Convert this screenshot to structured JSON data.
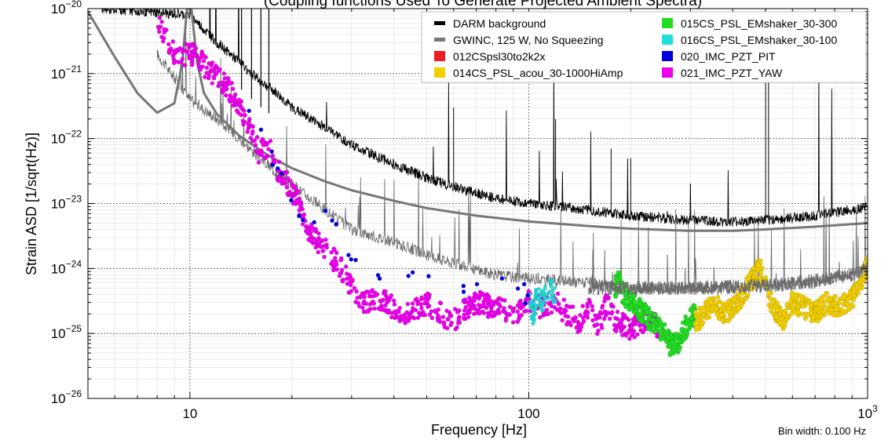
{
  "chart_data": {
    "type": "line",
    "title": "(Coupling functions Used To Generate Projected Ambient Spectra)",
    "xlabel": "Frequency [Hz]",
    "ylabel": "Strain ASD [1/sqrt(Hz)]",
    "xscale": "log",
    "yscale": "log",
    "xlim": [
      5,
      1000
    ],
    "ylim": [
      1e-26,
      1e-20
    ],
    "grid": true,
    "legend_position": "top-right",
    "note": "Bin width: 0.100 Hz",
    "x_ticks": [
      {
        "value": 10,
        "label": "10"
      },
      {
        "value": 100,
        "label": "100"
      },
      {
        "value": 1000,
        "label": "10",
        "exp": "3"
      }
    ],
    "y_ticks": [
      {
        "value": 1e-20,
        "label": "10",
        "exp": "−20"
      },
      {
        "value": 1e-21,
        "label": "10",
        "exp": "−21"
      },
      {
        "value": 1e-22,
        "label": "10",
        "exp": "−22"
      },
      {
        "value": 1e-23,
        "label": "10",
        "exp": "−23"
      },
      {
        "value": 1e-24,
        "label": "10",
        "exp": "−24"
      },
      {
        "value": 1e-25,
        "label": "10",
        "exp": "−25"
      },
      {
        "value": 1e-26,
        "label": "10",
        "exp": "−26"
      }
    ],
    "series": [
      {
        "name": "DARM background",
        "kind": "line",
        "color": "#000000",
        "x": [
          5.5,
          10,
          12,
          14,
          16,
          18,
          20,
          25,
          30,
          40,
          50,
          60,
          80,
          100,
          150,
          200,
          300,
          400,
          500,
          700,
          900,
          1000
        ],
        "y": [
          1e-20,
          8e-21,
          3e-21,
          1.5e-21,
          8e-22,
          5e-22,
          3e-22,
          1.5e-22,
          8e-23,
          4e-23,
          2.5e-23,
          1.8e-23,
          1.2e-23,
          1e-23,
          8e-24,
          6.5e-24,
          5.5e-24,
          5.2e-24,
          5.5e-24,
          6.5e-24,
          8e-24,
          9e-24
        ]
      },
      {
        "name": "GWINC, 125 W, No Squeezing",
        "kind": "line",
        "color": "#777777",
        "x": [
          5,
          6,
          7,
          8,
          9,
          9.5,
          9.8,
          10.1,
          10.5,
          11,
          12,
          14,
          17,
          20,
          25,
          30,
          40,
          50,
          70,
          100,
          150,
          200,
          300,
          400,
          500,
          700,
          1000
        ],
        "y": [
          9e-21,
          1.8e-21,
          5e-22,
          2.5e-22,
          3.5e-22,
          1.5e-21,
          1e-20,
          1e-20,
          1.5e-21,
          5e-22,
          2.4e-22,
          1.1e-22,
          5.5e-23,
          3.5e-23,
          2.2e-23,
          1.6e-23,
          1.1e-23,
          8.5e-24,
          6.5e-24,
          5.3e-24,
          4.5e-24,
          4.1e-24,
          3.8e-24,
          3.8e-24,
          4e-24,
          4.4e-24,
          5e-24
        ]
      },
      {
        "name": "012CSpsl30to2k2x",
        "kind": "points",
        "color": "#ee1c25",
        "x": [],
        "y": []
      },
      {
        "name": "014CS_PSL_acou_30-1000HiAmp",
        "kind": "points",
        "color": "#f2d000",
        "x": [
          310,
          330,
          350,
          380,
          400,
          430,
          450,
          480,
          520,
          560,
          600,
          650,
          700,
          760,
          820,
          880,
          940,
          1000
        ],
        "y": [
          1.5e-25,
          2e-25,
          3e-25,
          2e-25,
          2.5e-25,
          4e-25,
          6e-25,
          1e-24,
          3e-25,
          1.5e-25,
          3e-25,
          2.5e-25,
          2e-25,
          3e-25,
          2.5e-25,
          3e-25,
          5e-25,
          1.2e-24
        ]
      },
      {
        "name": "015CS_PSL_EMshaker_30-300",
        "kind": "points",
        "color": "#22dd22",
        "x": [
          180,
          185,
          190,
          200,
          210,
          230,
          250,
          265,
          280,
          295,
          310
        ],
        "y": [
          5e-25,
          7e-25,
          4e-25,
          3e-25,
          2.5e-25,
          1.5e-25,
          1e-25,
          6e-26,
          8e-26,
          1.5e-25,
          2e-25
        ]
      },
      {
        "name": "016CS_PSL_EMshaker_30-100",
        "kind": "points",
        "color": "#22dddd",
        "x": [
          100,
          103,
          106,
          110,
          115,
          120
        ],
        "y": [
          3e-25,
          2e-25,
          4e-25,
          3e-25,
          5e-25,
          3.5e-25
        ]
      },
      {
        "name": "020_IMC_PZT_PIT",
        "kind": "points",
        "color": "#0000dd",
        "x": [
          13.5,
          20,
          22,
          23,
          25,
          27,
          30,
          35,
          45,
          55,
          65,
          75,
          85,
          100
        ],
        "y": [
          8e-22,
          1.2e-23,
          6e-24,
          4e-24,
          1e-23,
          4e-24,
          1.5e-24,
          8e-25,
          7e-25,
          6e-25,
          5e-25,
          6e-25,
          5e-25,
          4e-25
        ]
      },
      {
        "name": "021_IMC_PZT_YAW",
        "kind": "points",
        "color": "#ee00ee",
        "x": [
          8,
          9,
          10.5,
          11,
          12,
          13,
          14,
          15,
          16,
          17,
          18,
          19,
          20,
          21,
          22,
          23,
          25,
          28,
          30,
          33,
          36,
          40,
          45,
          50,
          55,
          60,
          65,
          70,
          80,
          90,
          100,
          110,
          120,
          130,
          140,
          150,
          160,
          170,
          180,
          200,
          220,
          240
        ],
        "y": [
          6e-21,
          2e-21,
          2e-21,
          1.3e-21,
          9e-22,
          6e-22,
          3e-22,
          1.5e-22,
          6e-23,
          8e-23,
          3.5e-23,
          2.5e-23,
          1.5e-23,
          1e-23,
          5e-24,
          3e-24,
          2e-24,
          1e-24,
          5e-25,
          3e-25,
          3.5e-25,
          2.5e-25,
          2e-25,
          3e-25,
          2e-25,
          1.5e-25,
          2.5e-25,
          3e-25,
          2.5e-25,
          2e-25,
          3e-25,
          2.5e-25,
          3e-25,
          2e-25,
          1.5e-25,
          2.5e-25,
          1.2e-25,
          3e-25,
          1.5e-25,
          1.2e-25,
          1.5e-25,
          1.3e-25
        ]
      }
    ]
  }
}
